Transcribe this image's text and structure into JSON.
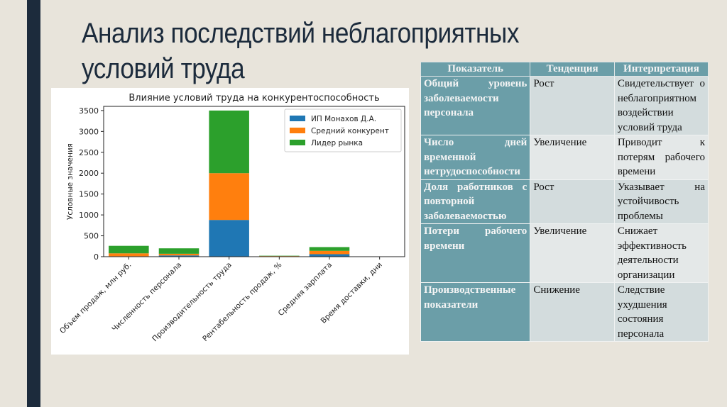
{
  "slide": {
    "title_line1": "Анализ последствий неблагоприятных",
    "title_line2": "условий труда",
    "colors": {
      "background": "#e8e4db",
      "accent_bar": "#1c2b3c",
      "table_header": "#6b9ea8"
    }
  },
  "table": {
    "headers": [
      "Показатель",
      "Тенденция",
      "Интерпретация"
    ],
    "rows": [
      {
        "indicator": "Общий уровень заболеваемости персонала",
        "trend": "Рост",
        "interpretation": "Свидетельствует о неблагоприятном воздействии условий труда"
      },
      {
        "indicator": "Число дней временной нетрудоспособности",
        "trend": "Увеличение",
        "interpretation": "Приводит к потерям рабочего времени"
      },
      {
        "indicator": "Доля работников с повторной заболеваемостью",
        "trend": "Рост",
        "interpretation": "Указывает на устойчивость проблемы"
      },
      {
        "indicator": "Потери рабочего времени",
        "trend": "Увеличение",
        "interpretation": "Снижает эффективность деятельности организации"
      },
      {
        "indicator": "Производственные показатели",
        "trend": "Снижение",
        "interpretation": "Следствие ухудшения состояния персонала"
      }
    ]
  },
  "chart_data": {
    "type": "bar",
    "stacked": true,
    "title": "Влияние условий труда на конкурентоспособность",
    "xlabel": "",
    "ylabel": "Условные значения",
    "ylim": [
      0,
      3600
    ],
    "yticks": [
      0,
      500,
      1000,
      1500,
      2000,
      2500,
      3000,
      3500
    ],
    "grid": false,
    "legend_position": "upper right",
    "categories": [
      "Объем продаж, млн руб.",
      "Численность персонала",
      "Производительность труда",
      "Рентабельность продаж, %",
      "Средняя зарплата",
      "Время доставки, дни"
    ],
    "series": [
      {
        "name": "ИП Монахов Д.А.",
        "color": "#1f77b4",
        "values": [
          10,
          30,
          880,
          5,
          60,
          2
        ]
      },
      {
        "name": "Средний конкурент",
        "color": "#ff7f0e",
        "values": [
          70,
          40,
          1120,
          10,
          80,
          3
        ]
      },
      {
        "name": "Лидер рынка",
        "color": "#2ca02c",
        "values": [
          180,
          130,
          1500,
          8,
          90,
          2
        ]
      }
    ]
  }
}
